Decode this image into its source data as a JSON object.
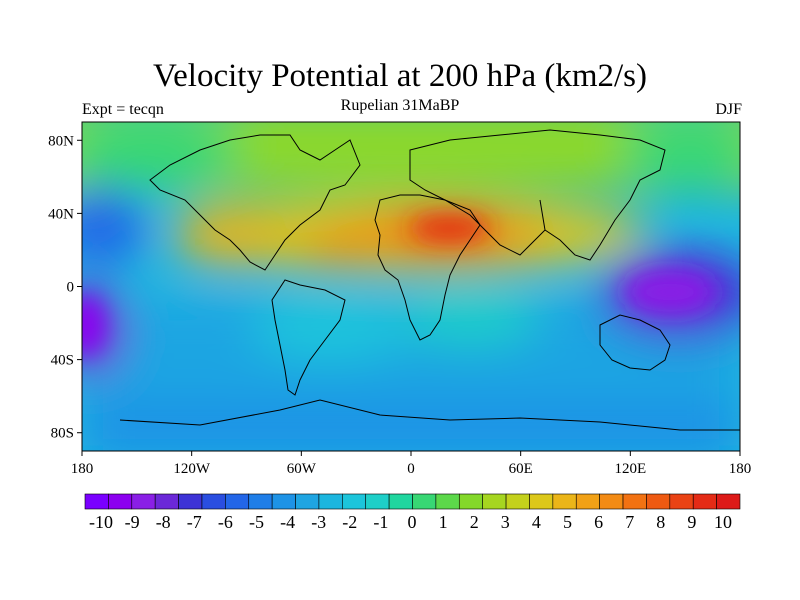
{
  "title": "Velocity Potential at 200 hPa (km2/s)",
  "left_string": "Expt = tecqn",
  "center_string": "Rupelian 31MaBP",
  "right_string": "DJF",
  "map_data": {
    "type": "contour-map",
    "projection": "equirectangular",
    "lon_range": [
      -180,
      180
    ],
    "lat_range": [
      -90,
      90
    ],
    "x_ticks": [
      {
        "lon": -180,
        "label": "180"
      },
      {
        "lon": -120,
        "label": "120W"
      },
      {
        "lon": -60,
        "label": "60W"
      },
      {
        "lon": 0,
        "label": "0"
      },
      {
        "lon": 60,
        "label": "60E"
      },
      {
        "lon": 120,
        "label": "120E"
      },
      {
        "lon": 180,
        "label": "180"
      }
    ],
    "y_ticks": [
      {
        "lat": 80,
        "label": "80N"
      },
      {
        "lat": 40,
        "label": "40N"
      },
      {
        "lat": 0,
        "label": "0"
      },
      {
        "lat": -40,
        "label": "40S"
      },
      {
        "lat": -80,
        "label": "80S"
      }
    ],
    "field_features": [
      {
        "name": "n-africa-max",
        "lon": 15,
        "lat": 25,
        "value": 9.5
      },
      {
        "name": "sahara-max",
        "lon": -30,
        "lat": 20,
        "value": 8
      },
      {
        "name": "n-america-max",
        "lon": -105,
        "lat": 30,
        "value": 7
      },
      {
        "name": "w-pacific-min",
        "lon": 140,
        "lat": -8,
        "value": -10
      },
      {
        "name": "e-pacific-min",
        "lon": -175,
        "lat": -25,
        "value": -9
      },
      {
        "name": "s-pacific",
        "lon": -150,
        "lat": -50,
        "value": -3
      },
      {
        "name": "n-pacific",
        "lon": -160,
        "lat": 40,
        "value": -4
      },
      {
        "name": "arctic",
        "lon": 0,
        "lat": 80,
        "value": 3
      }
    ],
    "colorbar": {
      "levels": [
        "-10",
        "-9",
        "-8",
        "-7",
        "-6",
        "-5",
        "-4",
        "-3",
        "-2",
        "-1",
        "0",
        "1",
        "2",
        "3",
        "4",
        "5",
        "6",
        "7",
        "8",
        "9",
        "10"
      ],
      "colors": [
        "#7a00ff",
        "#8c00f0",
        "#8a1fe6",
        "#6b28d8",
        "#3d33d6",
        "#2a4ee0",
        "#2366e8",
        "#1f7ee8",
        "#1e93e6",
        "#1fa5e2",
        "#1cb6df",
        "#1cc5db",
        "#1ecfc8",
        "#20d69f",
        "#38d774",
        "#5cd84a",
        "#84d82a",
        "#a6d620",
        "#c4d11c",
        "#dcc81a",
        "#ebb518",
        "#f1a116",
        "#f38b14",
        "#f27212",
        "#ee5a12",
        "#ea4314",
        "#e42b16",
        "#dd1a18"
      ]
    }
  }
}
